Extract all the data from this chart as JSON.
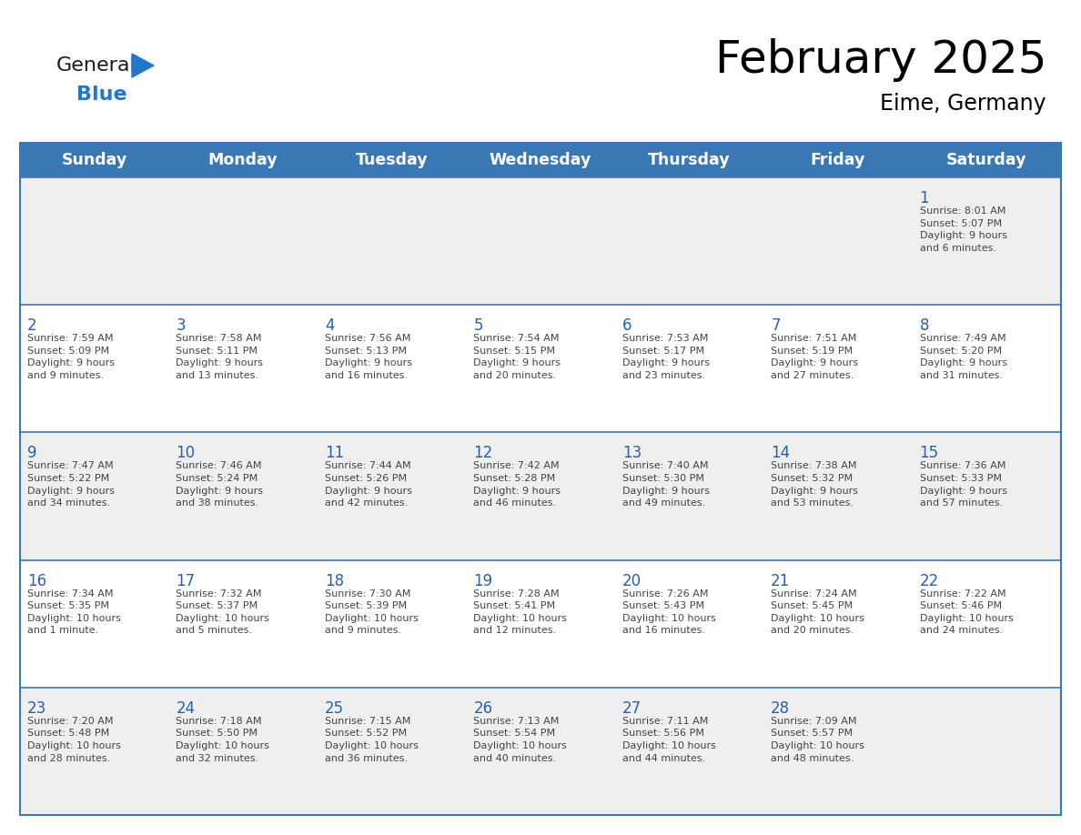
{
  "title": "February 2025",
  "subtitle": "Eime, Germany",
  "days_of_week": [
    "Sunday",
    "Monday",
    "Tuesday",
    "Wednesday",
    "Thursday",
    "Friday",
    "Saturday"
  ],
  "header_bg": "#3a78b5",
  "header_text_color": "#ffffff",
  "cell_bg_light": "#efefef",
  "cell_bg_white": "#ffffff",
  "day_number_color": "#2a5faa",
  "text_color": "#444444",
  "line_color": "#3a78b5",
  "logo_color_general": "#1a1a1a",
  "logo_color_blue": "#2277cc",
  "logo_triangle_color": "#2277cc",
  "weeks": [
    [
      {
        "day": null,
        "info": ""
      },
      {
        "day": null,
        "info": ""
      },
      {
        "day": null,
        "info": ""
      },
      {
        "day": null,
        "info": ""
      },
      {
        "day": null,
        "info": ""
      },
      {
        "day": null,
        "info": ""
      },
      {
        "day": 1,
        "info": "Sunrise: 8:01 AM\nSunset: 5:07 PM\nDaylight: 9 hours\nand 6 minutes."
      }
    ],
    [
      {
        "day": 2,
        "info": "Sunrise: 7:59 AM\nSunset: 5:09 PM\nDaylight: 9 hours\nand 9 minutes."
      },
      {
        "day": 3,
        "info": "Sunrise: 7:58 AM\nSunset: 5:11 PM\nDaylight: 9 hours\nand 13 minutes."
      },
      {
        "day": 4,
        "info": "Sunrise: 7:56 AM\nSunset: 5:13 PM\nDaylight: 9 hours\nand 16 minutes."
      },
      {
        "day": 5,
        "info": "Sunrise: 7:54 AM\nSunset: 5:15 PM\nDaylight: 9 hours\nand 20 minutes."
      },
      {
        "day": 6,
        "info": "Sunrise: 7:53 AM\nSunset: 5:17 PM\nDaylight: 9 hours\nand 23 minutes."
      },
      {
        "day": 7,
        "info": "Sunrise: 7:51 AM\nSunset: 5:19 PM\nDaylight: 9 hours\nand 27 minutes."
      },
      {
        "day": 8,
        "info": "Sunrise: 7:49 AM\nSunset: 5:20 PM\nDaylight: 9 hours\nand 31 minutes."
      }
    ],
    [
      {
        "day": 9,
        "info": "Sunrise: 7:47 AM\nSunset: 5:22 PM\nDaylight: 9 hours\nand 34 minutes."
      },
      {
        "day": 10,
        "info": "Sunrise: 7:46 AM\nSunset: 5:24 PM\nDaylight: 9 hours\nand 38 minutes."
      },
      {
        "day": 11,
        "info": "Sunrise: 7:44 AM\nSunset: 5:26 PM\nDaylight: 9 hours\nand 42 minutes."
      },
      {
        "day": 12,
        "info": "Sunrise: 7:42 AM\nSunset: 5:28 PM\nDaylight: 9 hours\nand 46 minutes."
      },
      {
        "day": 13,
        "info": "Sunrise: 7:40 AM\nSunset: 5:30 PM\nDaylight: 9 hours\nand 49 minutes."
      },
      {
        "day": 14,
        "info": "Sunrise: 7:38 AM\nSunset: 5:32 PM\nDaylight: 9 hours\nand 53 minutes."
      },
      {
        "day": 15,
        "info": "Sunrise: 7:36 AM\nSunset: 5:33 PM\nDaylight: 9 hours\nand 57 minutes."
      }
    ],
    [
      {
        "day": 16,
        "info": "Sunrise: 7:34 AM\nSunset: 5:35 PM\nDaylight: 10 hours\nand 1 minute."
      },
      {
        "day": 17,
        "info": "Sunrise: 7:32 AM\nSunset: 5:37 PM\nDaylight: 10 hours\nand 5 minutes."
      },
      {
        "day": 18,
        "info": "Sunrise: 7:30 AM\nSunset: 5:39 PM\nDaylight: 10 hours\nand 9 minutes."
      },
      {
        "day": 19,
        "info": "Sunrise: 7:28 AM\nSunset: 5:41 PM\nDaylight: 10 hours\nand 12 minutes."
      },
      {
        "day": 20,
        "info": "Sunrise: 7:26 AM\nSunset: 5:43 PM\nDaylight: 10 hours\nand 16 minutes."
      },
      {
        "day": 21,
        "info": "Sunrise: 7:24 AM\nSunset: 5:45 PM\nDaylight: 10 hours\nand 20 minutes."
      },
      {
        "day": 22,
        "info": "Sunrise: 7:22 AM\nSunset: 5:46 PM\nDaylight: 10 hours\nand 24 minutes."
      }
    ],
    [
      {
        "day": 23,
        "info": "Sunrise: 7:20 AM\nSunset: 5:48 PM\nDaylight: 10 hours\nand 28 minutes."
      },
      {
        "day": 24,
        "info": "Sunrise: 7:18 AM\nSunset: 5:50 PM\nDaylight: 10 hours\nand 32 minutes."
      },
      {
        "day": 25,
        "info": "Sunrise: 7:15 AM\nSunset: 5:52 PM\nDaylight: 10 hours\nand 36 minutes."
      },
      {
        "day": 26,
        "info": "Sunrise: 7:13 AM\nSunset: 5:54 PM\nDaylight: 10 hours\nand 40 minutes."
      },
      {
        "day": 27,
        "info": "Sunrise: 7:11 AM\nSunset: 5:56 PM\nDaylight: 10 hours\nand 44 minutes."
      },
      {
        "day": 28,
        "info": "Sunrise: 7:09 AM\nSunset: 5:57 PM\nDaylight: 10 hours\nand 48 minutes."
      },
      {
        "day": null,
        "info": ""
      }
    ]
  ]
}
